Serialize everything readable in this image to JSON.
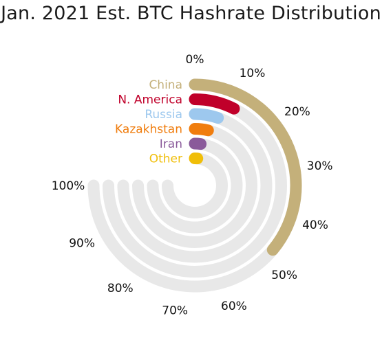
{
  "chart_data": {
    "type": "radial-bar",
    "title": "Jan. 2021 Est. BTC Hashrate Distribution",
    "scale": {
      "min": 0,
      "max": 100,
      "unit": "%"
    },
    "ticks": [
      "0%",
      "10%",
      "20%",
      "30%",
      "40%",
      "50%",
      "60%",
      "70%",
      "80%",
      "90%",
      "100%"
    ],
    "track_color": "#e8e8e8",
    "series": [
      {
        "name": "China",
        "value": 48,
        "color": "#c4b07a"
      },
      {
        "name": "N. America",
        "value": 10,
        "color": "#c0002a"
      },
      {
        "name": "Russia",
        "value": 7,
        "color": "#9dc8ee"
      },
      {
        "name": "Kazakhstan",
        "value": 5,
        "color": "#f07d0e"
      },
      {
        "name": "Iran",
        "value": 3,
        "color": "#8a5a9a"
      },
      {
        "name": "Other",
        "value": 2,
        "color": "#f0be08"
      }
    ]
  }
}
